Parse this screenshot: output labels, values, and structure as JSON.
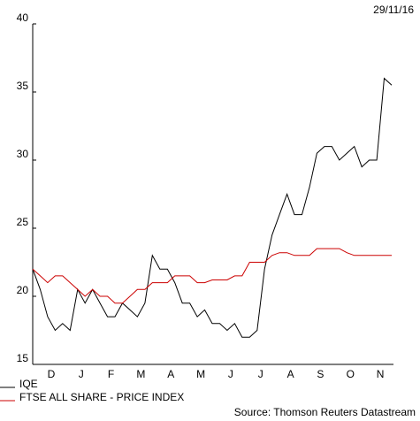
{
  "chart_data": {
    "type": "line",
    "date": "29/11/16",
    "source": "Source: Thomson Reuters Datastream",
    "categories": [
      null,
      null,
      "D",
      null,
      null,
      null,
      "J",
      null,
      null,
      null,
      "F",
      null,
      null,
      null,
      "M",
      null,
      null,
      null,
      "A",
      null,
      null,
      null,
      "M",
      null,
      null,
      null,
      "J",
      null,
      null,
      null,
      "J",
      null,
      null,
      null,
      "A",
      null,
      null,
      null,
      "S",
      null,
      null,
      null,
      "O",
      null,
      null,
      null,
      "N",
      null,
      null
    ],
    "series": [
      {
        "name": "IQE",
        "color": "#000000",
        "values": [
          22,
          20.5,
          18.5,
          17.5,
          18,
          17.5,
          20.5,
          19.5,
          20.5,
          19.5,
          18.5,
          18.5,
          19.5,
          19,
          18.5,
          19.5,
          23,
          22,
          22,
          21,
          19.5,
          19.5,
          18.5,
          19,
          18,
          18,
          17.5,
          18,
          17,
          17,
          17.5,
          22,
          24.5,
          26,
          27.5,
          26,
          26,
          28,
          30.5,
          31,
          31,
          30,
          30.5,
          31,
          29.5,
          30,
          30,
          36,
          35.5
        ]
      },
      {
        "name": "FTSE ALL SHARE - PRICE INDEX",
        "color": "#cc0000",
        "values": [
          22,
          21.5,
          21,
          21.5,
          21.5,
          21,
          20.5,
          20,
          20.5,
          20,
          20,
          19.5,
          19.5,
          20,
          20.5,
          20.5,
          21,
          21,
          21,
          21.5,
          21.5,
          21.5,
          21,
          21,
          21.2,
          21.2,
          21.2,
          21.5,
          21.5,
          22.5,
          22.5,
          22.5,
          23,
          23.2,
          23.2,
          23,
          23,
          23,
          23.5,
          23.5,
          23.5,
          23.5,
          23.2,
          23,
          23,
          23,
          23,
          23,
          23
        ]
      }
    ],
    "ylim": [
      15,
      40
    ],
    "yticks": [
      15,
      20,
      25,
      30,
      35,
      40
    ]
  }
}
